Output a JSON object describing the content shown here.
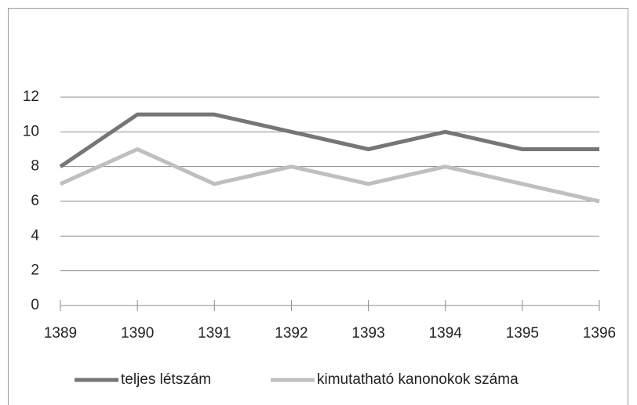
{
  "chart_data": {
    "type": "line",
    "x": [
      1389,
      1390,
      1391,
      1392,
      1393,
      1394,
      1395,
      1396
    ],
    "xlim": [
      1389,
      1396
    ],
    "xticks": [
      1389,
      1390,
      1391,
      1392,
      1393,
      1394,
      1395,
      1396
    ],
    "ylim": [
      0,
      12
    ],
    "yticks": [
      0,
      2,
      4,
      6,
      8,
      10,
      12
    ],
    "grid": true,
    "legend": "bottom",
    "series": [
      {
        "name": "teljes létszám",
        "color": "#767676",
        "values": [
          8,
          11,
          11,
          10,
          9,
          10,
          9,
          9
        ]
      },
      {
        "name": "kimutatható kanonokok száma",
        "color": "#bfbfbf",
        "values": [
          7,
          9,
          7,
          8,
          7,
          8,
          7,
          6
        ]
      }
    ]
  }
}
